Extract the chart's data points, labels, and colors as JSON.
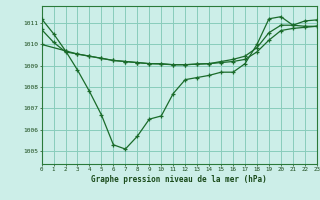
{
  "background_color": "#cceee8",
  "grid_color": "#88ccbb",
  "line_color": "#1a6b2a",
  "title": "Graphe pression niveau de la mer (hPa)",
  "xlim": [
    0,
    23
  ],
  "ylim": [
    1004.4,
    1011.8
  ],
  "yticks": [
    1005,
    1006,
    1007,
    1008,
    1009,
    1010,
    1011
  ],
  "xticks": [
    0,
    1,
    2,
    3,
    4,
    5,
    6,
    7,
    8,
    9,
    10,
    11,
    12,
    13,
    14,
    15,
    16,
    17,
    18,
    19,
    20,
    21,
    22,
    23
  ],
  "line1_x": [
    0,
    1,
    2,
    3,
    4,
    5,
    6,
    7,
    8,
    9,
    10,
    11,
    12,
    13,
    14,
    15,
    16,
    17,
    18,
    19,
    20,
    21,
    22,
    23
  ],
  "line1_y": [
    1011.2,
    1010.5,
    1009.7,
    1008.8,
    1007.8,
    1006.7,
    1005.3,
    1005.1,
    1005.7,
    1006.5,
    1006.65,
    1007.7,
    1008.35,
    1008.45,
    1008.55,
    1008.7,
    1008.7,
    1009.1,
    1010.0,
    1011.2,
    1011.3,
    1010.9,
    1011.1,
    1011.15
  ],
  "line2_x": [
    0,
    2,
    3,
    4,
    5,
    6,
    7,
    8,
    9,
    10,
    11,
    12,
    13,
    14,
    15,
    16,
    17,
    18,
    19,
    20,
    21,
    22,
    23
  ],
  "line2_y": [
    1010.0,
    1009.7,
    1009.55,
    1009.45,
    1009.35,
    1009.25,
    1009.2,
    1009.15,
    1009.1,
    1009.08,
    1009.05,
    1009.05,
    1009.08,
    1009.1,
    1009.15,
    1009.2,
    1009.3,
    1009.65,
    1010.2,
    1010.65,
    1010.75,
    1010.8,
    1010.85
  ],
  "line3_x": [
    0,
    1,
    2,
    3,
    4,
    5,
    6,
    7,
    8,
    9,
    10,
    11,
    12,
    13,
    14,
    15,
    16,
    17,
    18,
    19,
    20,
    21,
    22,
    23
  ],
  "line3_y": [
    1010.7,
    1010.1,
    1009.65,
    1009.55,
    1009.45,
    1009.35,
    1009.25,
    1009.2,
    1009.15,
    1009.1,
    1009.1,
    1009.05,
    1009.05,
    1009.08,
    1009.1,
    1009.2,
    1009.3,
    1009.45,
    1009.85,
    1010.55,
    1010.9,
    1010.9,
    1010.85,
    1010.85
  ]
}
